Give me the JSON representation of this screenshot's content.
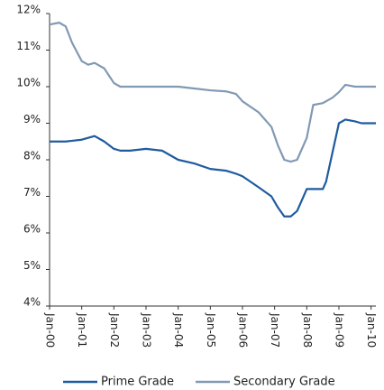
{
  "chart_data": {
    "type": "line",
    "x": [
      2000,
      2000.3,
      2000.5,
      2000.7,
      2001,
      2001.2,
      2001.4,
      2001.7,
      2002,
      2002.2,
      2002.5,
      2003,
      2003.5,
      2004,
      2004.5,
      2005,
      2005.5,
      2005.8,
      2006,
      2006.5,
      2006.9,
      2007.1,
      2007.3,
      2007.5,
      2007.7,
      2008,
      2008.2,
      2008.5,
      2008.6,
      2008.8,
      2009,
      2009.2,
      2009.5,
      2009.7,
      2010.15
    ],
    "series": [
      {
        "name": "Prime Grade",
        "color": "#1f5b9e",
        "values": [
          8.5,
          8.5,
          8.5,
          8.52,
          8.55,
          8.6,
          8.65,
          8.5,
          8.3,
          8.25,
          8.25,
          8.3,
          8.25,
          8.0,
          7.9,
          7.75,
          7.7,
          7.62,
          7.55,
          7.25,
          7.0,
          6.7,
          6.45,
          6.45,
          6.6,
          7.2,
          7.2,
          7.2,
          7.4,
          8.2,
          9.0,
          9.1,
          9.05,
          9.0,
          9.0
        ]
      },
      {
        "name": "Secondary Grade",
        "color": "#8199b3",
        "values": [
          11.7,
          11.75,
          11.65,
          11.2,
          10.7,
          10.6,
          10.65,
          10.5,
          10.1,
          10.0,
          10.0,
          10.0,
          10.0,
          10.0,
          9.95,
          9.9,
          9.87,
          9.8,
          9.6,
          9.3,
          8.9,
          8.4,
          8.0,
          7.95,
          8.0,
          8.6,
          9.5,
          9.55,
          9.6,
          9.7,
          9.85,
          10.05,
          10.0,
          10.0,
          10.0
        ]
      }
    ],
    "xlim": [
      2000,
      2010.15
    ],
    "xticks": [
      {
        "value": 2000,
        "label": "Jan-00"
      },
      {
        "value": 2001,
        "label": "Jan-01"
      },
      {
        "value": 2002,
        "label": "Jan-02"
      },
      {
        "value": 2003,
        "label": "Jan-03"
      },
      {
        "value": 2004,
        "label": "Jan-04"
      },
      {
        "value": 2005,
        "label": "Jan-05"
      },
      {
        "value": 2006,
        "label": "Jan-06"
      },
      {
        "value": 2007,
        "label": "Jan-07"
      },
      {
        "value": 2008,
        "label": "Jan-08"
      },
      {
        "value": 2009,
        "label": "Jan-09"
      },
      {
        "value": 2010,
        "label": "Jan-10"
      }
    ],
    "ylim": [
      4,
      12
    ],
    "yticks": [
      {
        "value": 4,
        "label": "4%"
      },
      {
        "value": 5,
        "label": "5%"
      },
      {
        "value": 6,
        "label": "6%"
      },
      {
        "value": 7,
        "label": "7%"
      },
      {
        "value": 8,
        "label": "8%"
      },
      {
        "value": 9,
        "label": "9%"
      },
      {
        "value": 10,
        "label": "10%"
      },
      {
        "value": 11,
        "label": "11%"
      },
      {
        "value": 12,
        "label": "12%"
      }
    ],
    "grid": false
  }
}
